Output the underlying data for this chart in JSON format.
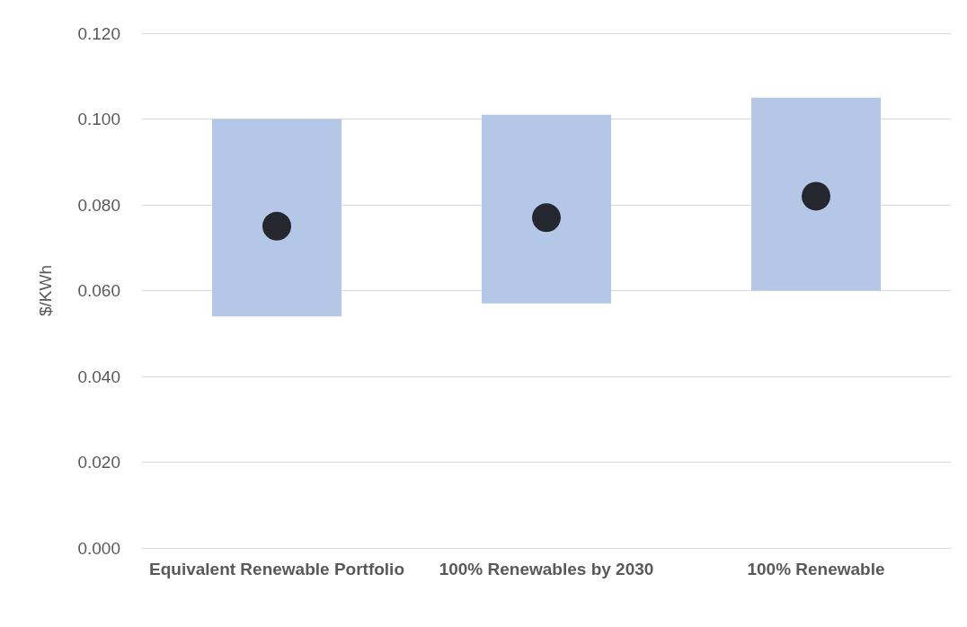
{
  "chart_data": {
    "type": "bar",
    "ylabel": "$/KWh",
    "categories": [
      "Equivalent Renewable Portfolio",
      "100% Renewables by 2030",
      "100% Renewable"
    ],
    "series": [
      {
        "color": "#b4c7e7",
        "base": [
          0.054,
          0.057,
          0.06
        ],
        "values": [
          0.046,
          0.044,
          0.045
        ]
      },
      {
        "type": "scatter",
        "color": "#000000",
        "x": [
          "Equivalent Renewable Portfolio",
          "100% Renewables by 2030",
          "100% Renewable"
        ],
        "values": [
          0.075,
          0.077,
          0.082
        ]
      }
    ],
    "ylim": [
      0,
      0.12
    ],
    "yticks": [
      {
        "value": 0,
        "label": "0.000"
      },
      {
        "value": 0.02,
        "label": "0.020"
      },
      {
        "value": 0.04,
        "label": "0.040"
      },
      {
        "value": 0.06,
        "label": "0.060"
      },
      {
        "value": 0.08,
        "label": "0.080"
      },
      {
        "value": 0.1,
        "label": "0.100"
      },
      {
        "value": 0.12,
        "label": "0.120"
      }
    ],
    "grid": "y",
    "marker": "circle"
  }
}
